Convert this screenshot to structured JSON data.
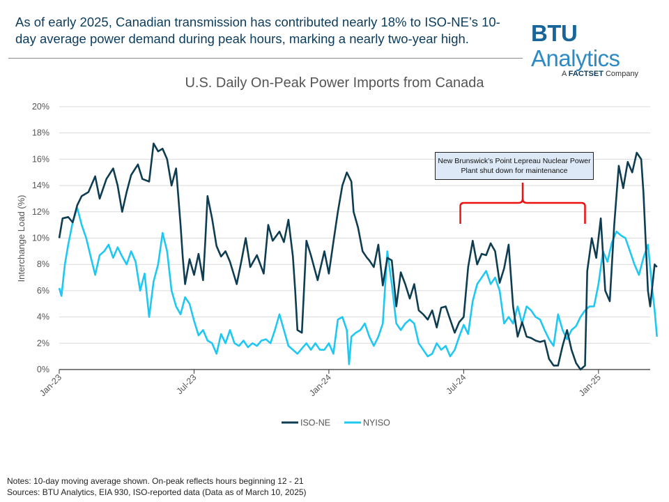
{
  "headline": "As of early 2025, Canadian transmission has contributed nearly 18% to ISO-NE’s 10-day average power demand during peak hours, marking a nearly two-year high.",
  "logo": {
    "brand_bold": "BTU",
    "brand_rest": "Analytics",
    "sub_prefix": "A ",
    "sub_bold": "FACTSET",
    "sub_suffix": " Company"
  },
  "notes": {
    "line1": "Notes: 10-day moving average shown. On-peak reflects hours beginning 12 - 21",
    "line2": "Sources: BTU Analytics, EIA 930, ISO-reported data (Data as of March 10, 2025)"
  },
  "annotation": {
    "text": "New Brunswick’s Point Lepreau Nuclear Power Plant shut down for maintenance"
  },
  "colors": {
    "iso_ne": "#0e3d52",
    "nyiso": "#1ec8f2",
    "bracket": "#ee1111",
    "grid": "#d9d9d9"
  },
  "chart_data": {
    "type": "line",
    "title": "U.S. Daily On-Peak Power Imports from Canada",
    "ylabel": "Interchange Load (%)",
    "xlabel": "",
    "ylim": [
      0,
      20
    ],
    "yticks": [
      "0%",
      "2%",
      "4%",
      "6%",
      "8%",
      "10%",
      "12%",
      "14%",
      "16%",
      "18%",
      "20%"
    ],
    "x_range": [
      0,
      26.3
    ],
    "x_unit": "months since Jan-23",
    "xticks": [
      {
        "label": "Jan-23",
        "x": 0
      },
      {
        "label": "Jul-23",
        "x": 6
      },
      {
        "label": "Jan-24",
        "x": 12
      },
      {
        "label": "Jul-24",
        "x": 18
      },
      {
        "label": "Jan-25",
        "x": 24
      }
    ],
    "annotation_span_x": [
      17.85,
      23.4
    ],
    "legend": [
      "ISO-NE",
      "NYISO"
    ],
    "series": [
      {
        "name": "ISO-NE",
        "points": [
          [
            0.0,
            10.0
          ],
          [
            0.15,
            11.5
          ],
          [
            0.4,
            11.6
          ],
          [
            0.6,
            11.2
          ],
          [
            0.8,
            12.5
          ],
          [
            1.0,
            13.2
          ],
          [
            1.3,
            13.5
          ],
          [
            1.6,
            14.7
          ],
          [
            1.8,
            13.0
          ],
          [
            2.1,
            14.5
          ],
          [
            2.4,
            15.3
          ],
          [
            2.6,
            14.0
          ],
          [
            2.8,
            12.0
          ],
          [
            3.0,
            13.5
          ],
          [
            3.2,
            14.8
          ],
          [
            3.5,
            15.6
          ],
          [
            3.7,
            14.5
          ],
          [
            4.0,
            14.3
          ],
          [
            4.2,
            17.2
          ],
          [
            4.4,
            16.6
          ],
          [
            4.6,
            16.8
          ],
          [
            4.8,
            16.0
          ],
          [
            5.0,
            14.0
          ],
          [
            5.2,
            15.3
          ],
          [
            5.4,
            11.0
          ],
          [
            5.5,
            8.5
          ],
          [
            5.6,
            6.5
          ],
          [
            5.8,
            8.4
          ],
          [
            6.0,
            7.2
          ],
          [
            6.2,
            8.8
          ],
          [
            6.4,
            6.8
          ],
          [
            6.5,
            9.8
          ],
          [
            6.6,
            13.2
          ],
          [
            6.8,
            11.5
          ],
          [
            7.0,
            9.4
          ],
          [
            7.2,
            8.6
          ],
          [
            7.4,
            9.0
          ],
          [
            7.6,
            8.2
          ],
          [
            7.9,
            6.5
          ],
          [
            8.1,
            8.2
          ],
          [
            8.3,
            10.0
          ],
          [
            8.5,
            7.8
          ],
          [
            8.8,
            8.7
          ],
          [
            9.1,
            7.3
          ],
          [
            9.3,
            11.0
          ],
          [
            9.5,
            9.8
          ],
          [
            9.8,
            10.5
          ],
          [
            10.0,
            9.7
          ],
          [
            10.2,
            11.4
          ],
          [
            10.4,
            8.6
          ],
          [
            10.5,
            6.0
          ],
          [
            10.6,
            3.0
          ],
          [
            10.8,
            2.8
          ],
          [
            11.0,
            9.8
          ],
          [
            11.2,
            8.7
          ],
          [
            11.5,
            6.8
          ],
          [
            11.8,
            9.0
          ],
          [
            12.0,
            7.3
          ],
          [
            12.2,
            9.7
          ],
          [
            12.4,
            12.0
          ],
          [
            12.6,
            14.0
          ],
          [
            12.8,
            15.0
          ],
          [
            13.0,
            14.3
          ],
          [
            13.1,
            12.0
          ],
          [
            13.3,
            10.8
          ],
          [
            13.5,
            9.0
          ],
          [
            13.7,
            8.5
          ],
          [
            13.8,
            8.3
          ],
          [
            14.0,
            7.8
          ],
          [
            14.2,
            9.5
          ],
          [
            14.4,
            6.4
          ],
          [
            14.6,
            8.5
          ],
          [
            14.8,
            8.3
          ],
          [
            15.0,
            4.8
          ],
          [
            15.2,
            7.4
          ],
          [
            15.4,
            6.5
          ],
          [
            15.6,
            5.4
          ],
          [
            15.8,
            6.5
          ],
          [
            16.0,
            4.5
          ],
          [
            16.2,
            4.2
          ],
          [
            16.4,
            3.8
          ],
          [
            16.6,
            4.5
          ],
          [
            16.8,
            3.2
          ],
          [
            17.0,
            4.7
          ],
          [
            17.2,
            4.8
          ],
          [
            17.4,
            3.8
          ],
          [
            17.6,
            2.8
          ],
          [
            17.8,
            3.6
          ],
          [
            18.0,
            4.0
          ],
          [
            18.2,
            7.8
          ],
          [
            18.4,
            9.8
          ],
          [
            18.6,
            8.0
          ],
          [
            18.8,
            8.8
          ],
          [
            19.0,
            8.7
          ],
          [
            19.2,
            9.6
          ],
          [
            19.4,
            9.0
          ],
          [
            19.6,
            6.6
          ],
          [
            19.8,
            7.7
          ],
          [
            20.0,
            9.5
          ],
          [
            20.2,
            4.8
          ],
          [
            20.4,
            2.5
          ],
          [
            20.6,
            3.6
          ],
          [
            20.8,
            2.5
          ],
          [
            21.0,
            2.4
          ],
          [
            21.2,
            2.2
          ],
          [
            21.4,
            2.1
          ],
          [
            21.6,
            2.2
          ],
          [
            21.8,
            0.8
          ],
          [
            22.0,
            0.3
          ],
          [
            22.2,
            0.3
          ],
          [
            22.4,
            1.8
          ],
          [
            22.6,
            3.0
          ],
          [
            22.8,
            1.5
          ],
          [
            23.0,
            0.5
          ],
          [
            23.2,
            0.0
          ],
          [
            23.4,
            0.3
          ],
          [
            23.5,
            7.5
          ],
          [
            23.7,
            10.0
          ],
          [
            23.9,
            8.5
          ],
          [
            24.1,
            11.5
          ],
          [
            24.3,
            6.0
          ],
          [
            24.5,
            5.2
          ],
          [
            24.7,
            11.0
          ],
          [
            24.9,
            15.5
          ],
          [
            25.1,
            13.8
          ],
          [
            25.3,
            15.8
          ],
          [
            25.5,
            15.0
          ],
          [
            25.7,
            16.5
          ],
          [
            25.9,
            16.0
          ],
          [
            26.0,
            13.5
          ],
          [
            26.2,
            6.0
          ],
          [
            26.3,
            4.8
          ],
          [
            26.5,
            8.0
          ],
          [
            26.6,
            7.8
          ]
        ]
      },
      {
        "name": "NYISO",
        "points": [
          [
            0.0,
            6.2
          ],
          [
            0.1,
            5.6
          ],
          [
            0.25,
            8.0
          ],
          [
            0.4,
            9.5
          ],
          [
            0.6,
            11.2
          ],
          [
            0.8,
            12.3
          ],
          [
            1.0,
            11.0
          ],
          [
            1.2,
            10.0
          ],
          [
            1.4,
            8.6
          ],
          [
            1.6,
            7.2
          ],
          [
            1.8,
            8.7
          ],
          [
            2.0,
            9.0
          ],
          [
            2.2,
            9.5
          ],
          [
            2.4,
            8.5
          ],
          [
            2.6,
            9.3
          ],
          [
            2.8,
            8.6
          ],
          [
            3.0,
            8.0
          ],
          [
            3.2,
            9.0
          ],
          [
            3.4,
            8.2
          ],
          [
            3.6,
            6.0
          ],
          [
            3.8,
            7.3
          ],
          [
            4.0,
            4.0
          ],
          [
            4.2,
            6.7
          ],
          [
            4.4,
            8.0
          ],
          [
            4.6,
            10.4
          ],
          [
            4.8,
            9.0
          ],
          [
            5.0,
            6.0
          ],
          [
            5.2,
            4.8
          ],
          [
            5.4,
            4.2
          ],
          [
            5.6,
            5.5
          ],
          [
            5.8,
            5.0
          ],
          [
            6.0,
            3.7
          ],
          [
            6.2,
            2.6
          ],
          [
            6.4,
            3.0
          ],
          [
            6.6,
            2.2
          ],
          [
            6.8,
            2.0
          ],
          [
            7.0,
            1.2
          ],
          [
            7.2,
            2.7
          ],
          [
            7.4,
            2.0
          ],
          [
            7.6,
            3.0
          ],
          [
            7.8,
            2.0
          ],
          [
            8.0,
            1.8
          ],
          [
            8.2,
            2.2
          ],
          [
            8.4,
            1.7
          ],
          [
            8.6,
            2.0
          ],
          [
            8.8,
            1.8
          ],
          [
            9.0,
            2.2
          ],
          [
            9.2,
            2.3
          ],
          [
            9.4,
            2.0
          ],
          [
            9.6,
            3.0
          ],
          [
            9.8,
            4.2
          ],
          [
            10.0,
            3.0
          ],
          [
            10.2,
            1.8
          ],
          [
            10.4,
            1.5
          ],
          [
            10.6,
            1.2
          ],
          [
            10.8,
            1.6
          ],
          [
            11.0,
            2.0
          ],
          [
            11.2,
            1.5
          ],
          [
            11.4,
            2.0
          ],
          [
            11.6,
            1.5
          ],
          [
            11.8,
            1.5
          ],
          [
            12.0,
            2.0
          ],
          [
            12.2,
            1.2
          ],
          [
            12.4,
            3.8
          ],
          [
            12.6,
            4.0
          ],
          [
            12.8,
            3.0
          ],
          [
            12.9,
            0.4
          ],
          [
            13.0,
            2.5
          ],
          [
            13.2,
            2.8
          ],
          [
            13.4,
            3.0
          ],
          [
            13.6,
            3.5
          ],
          [
            13.8,
            2.5
          ],
          [
            14.0,
            1.8
          ],
          [
            14.2,
            2.5
          ],
          [
            14.4,
            3.5
          ],
          [
            14.6,
            9.0
          ],
          [
            14.8,
            6.5
          ],
          [
            15.0,
            3.5
          ],
          [
            15.2,
            3.0
          ],
          [
            15.4,
            3.5
          ],
          [
            15.6,
            3.8
          ],
          [
            15.8,
            3.5
          ],
          [
            16.0,
            2.0
          ],
          [
            16.2,
            1.5
          ],
          [
            16.4,
            1.0
          ],
          [
            16.6,
            1.2
          ],
          [
            16.8,
            2.0
          ],
          [
            17.0,
            1.5
          ],
          [
            17.2,
            1.8
          ],
          [
            17.4,
            1.0
          ],
          [
            17.6,
            1.5
          ],
          [
            17.8,
            2.5
          ],
          [
            18.0,
            3.4
          ],
          [
            18.2,
            2.7
          ],
          [
            18.4,
            5.2
          ],
          [
            18.6,
            6.5
          ],
          [
            18.8,
            7.0
          ],
          [
            19.0,
            7.5
          ],
          [
            19.2,
            6.5
          ],
          [
            19.4,
            7.0
          ],
          [
            19.6,
            6.0
          ],
          [
            19.8,
            3.5
          ],
          [
            20.0,
            4.0
          ],
          [
            20.2,
            3.5
          ],
          [
            20.4,
            4.8
          ],
          [
            20.6,
            3.5
          ],
          [
            20.8,
            4.8
          ],
          [
            21.0,
            4.5
          ],
          [
            21.2,
            4.0
          ],
          [
            21.4,
            3.8
          ],
          [
            21.6,
            3.0
          ],
          [
            21.8,
            2.3
          ],
          [
            22.0,
            1.8
          ],
          [
            22.2,
            4.2
          ],
          [
            22.4,
            3.0
          ],
          [
            22.6,
            2.3
          ],
          [
            22.8,
            3.0
          ],
          [
            23.0,
            3.3
          ],
          [
            23.2,
            4.0
          ],
          [
            23.4,
            4.5
          ],
          [
            23.6,
            4.8
          ],
          [
            23.8,
            4.8
          ],
          [
            24.0,
            6.5
          ],
          [
            24.2,
            9.0
          ],
          [
            24.4,
            8.2
          ],
          [
            24.6,
            9.7
          ],
          [
            24.8,
            10.5
          ],
          [
            25.0,
            10.2
          ],
          [
            25.2,
            10.0
          ],
          [
            25.4,
            9.0
          ],
          [
            25.6,
            8.0
          ],
          [
            25.8,
            7.2
          ],
          [
            26.0,
            8.5
          ],
          [
            26.2,
            9.5
          ],
          [
            26.4,
            6.0
          ],
          [
            26.5,
            4.5
          ],
          [
            26.6,
            2.5
          ]
        ]
      }
    ]
  }
}
